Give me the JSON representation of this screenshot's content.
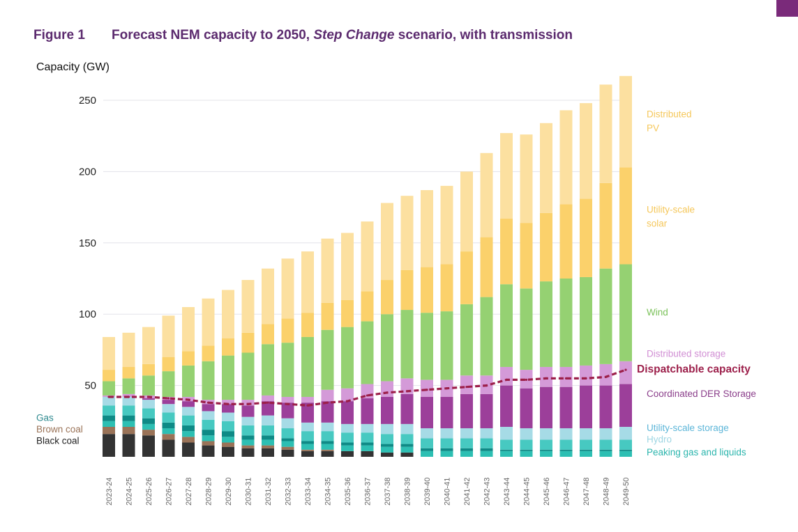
{
  "figure": {
    "label": "Figure 1",
    "title_part1": "Forecast NEM capacity to 2050, ",
    "title_italic": "Step Change",
    "title_part2": " scenario, with transmission"
  },
  "colors": {
    "title": "#5b2a6e",
    "corner_tab": "#7a2a7a",
    "grid": "#e3e3ea",
    "dispatchable_line": "#9c1f4a"
  },
  "chart_data": {
    "type": "stacked-bar",
    "title": "Forecast NEM capacity to 2050, Step Change scenario, with transmission",
    "ylabel": "Capacity (GW)",
    "xlabel": "",
    "ylim": [
      0,
      270
    ],
    "yticks": [
      50,
      100,
      150,
      200,
      250
    ],
    "grid": true,
    "categories": [
      "2023-24",
      "2024-25",
      "2025-26",
      "2026-27",
      "2027-28",
      "2028-29",
      "2029-30",
      "2030-31",
      "2031-32",
      "2032-33",
      "2033-34",
      "2034-35",
      "2035-36",
      "2036-37",
      "2037-38",
      "2038-39",
      "2039-40",
      "2040-41",
      "2041-42",
      "2042-43",
      "2043-44",
      "2044-45",
      "2045-46",
      "2046-47",
      "2047-48",
      "2048-49",
      "2049-50"
    ],
    "series": [
      {
        "name": "Black coal",
        "color": "#333333",
        "values": [
          16,
          16,
          15,
          12,
          10,
          8,
          7,
          6,
          6,
          5,
          4,
          4,
          4,
          4,
          3,
          3,
          0,
          0,
          0,
          0,
          0,
          0,
          0,
          0,
          0,
          0,
          0
        ]
      },
      {
        "name": "Brown coal",
        "color": "#9a7358",
        "values": [
          5,
          5,
          4,
          4,
          4,
          3,
          3,
          2,
          2,
          2,
          1,
          1,
          0,
          0,
          0,
          0,
          0,
          0,
          0,
          0,
          0,
          0,
          0,
          0,
          0,
          0,
          0
        ]
      },
      {
        "name": "Peaking gas and liquids",
        "color": "#2dbfb3",
        "values": [
          4,
          4,
          4,
          4,
          4,
          4,
          4,
          4,
          4,
          4,
          4,
          4,
          4,
          4,
          4,
          4,
          4,
          4,
          4,
          4,
          4,
          4,
          4,
          4,
          4,
          4,
          4
        ]
      },
      {
        "name": "Gas",
        "color": "#0e8a86",
        "values": [
          4,
          4,
          4,
          4,
          4,
          4,
          4,
          3,
          3,
          2,
          2,
          2,
          2,
          2,
          2,
          2,
          2,
          2,
          2,
          2,
          1,
          1,
          1,
          1,
          1,
          1,
          1
        ]
      },
      {
        "name": "Hydro",
        "color": "#47c9c1",
        "values": [
          7,
          7,
          7,
          7,
          7,
          7,
          7,
          7,
          7,
          7,
          7,
          7,
          7,
          7,
          7,
          7,
          7,
          7,
          7,
          7,
          7,
          7,
          7,
          7,
          7,
          7,
          7
        ]
      },
      {
        "name": "Utility-scale storage",
        "color": "#a6dbe6",
        "values": [
          6,
          6,
          6,
          6,
          6,
          6,
          6,
          6,
          7,
          7,
          6,
          6,
          6,
          6,
          7,
          7,
          7,
          7,
          7,
          7,
          9,
          8,
          8,
          8,
          8,
          8,
          9
        ]
      },
      {
        "name": "Coordinated DER Storage",
        "color": "#9c3f9a",
        "values": [
          0,
          0,
          1,
          3,
          4,
          5,
          6,
          8,
          10,
          11,
          14,
          15,
          16,
          18,
          19,
          21,
          22,
          22,
          24,
          24,
          29,
          28,
          29,
          29,
          30,
          30,
          30
        ]
      },
      {
        "name": "Distributed storage",
        "color": "#d49ad8",
        "values": [
          1,
          2,
          2,
          2,
          3,
          3,
          3,
          4,
          4,
          4,
          4,
          8,
          9,
          10,
          11,
          11,
          12,
          12,
          13,
          13,
          13,
          13,
          14,
          14,
          14,
          15,
          16
        ]
      },
      {
        "name": "Wind",
        "color": "#95d172",
        "values": [
          10,
          11,
          14,
          18,
          22,
          27,
          31,
          33,
          36,
          38,
          42,
          42,
          43,
          44,
          47,
          48,
          47,
          48,
          50,
          55,
          58,
          57,
          60,
          62,
          62,
          67,
          68
        ]
      },
      {
        "name": "Utility-scale solar",
        "color": "#fbd16b",
        "values": [
          8,
          8,
          8,
          10,
          10,
          11,
          12,
          14,
          14,
          17,
          17,
          19,
          19,
          21,
          24,
          28,
          32,
          33,
          37,
          42,
          46,
          46,
          48,
          52,
          55,
          60,
          68
        ]
      },
      {
        "name": "Distributed PV",
        "color": "#fce0a0",
        "values": [
          23,
          24,
          26,
          29,
          31,
          33,
          34,
          37,
          39,
          42,
          43,
          45,
          47,
          49,
          54,
          52,
          54,
          55,
          56,
          59,
          60,
          62,
          63,
          66,
          67,
          69,
          64
        ]
      }
    ],
    "line": {
      "name": "Dispatchable capacity",
      "style": "dashed",
      "values": [
        42,
        42,
        42,
        41,
        40,
        38,
        37,
        37,
        38,
        37,
        36,
        38,
        39,
        43,
        45,
        46,
        47,
        48,
        49,
        50,
        54,
        54,
        55,
        55,
        55,
        56,
        61
      ]
    },
    "legend_labels": [
      {
        "name": "Gas",
        "text": "Gas",
        "color": "#2f8a8f",
        "side": "left",
        "at": 27
      },
      {
        "name": "Brown coal",
        "text": "Brown coal",
        "color": "#9a7358",
        "side": "left",
        "at": 19
      },
      {
        "name": "Black coal",
        "text": "Black coal",
        "color": "#222222",
        "side": "left",
        "at": 11
      },
      {
        "name": "Distributed PV",
        "text": [
          "Distributed",
          "PV"
        ],
        "color": "#f5c75a",
        "side": "right",
        "at": 240
      },
      {
        "name": "Utility-scale solar",
        "text": [
          "Utility-scale",
          "solar"
        ],
        "color": "#f5c75a",
        "side": "right",
        "at": 173
      },
      {
        "name": "Wind",
        "text": "Wind",
        "color": "#7bc25a",
        "side": "right",
        "at": 101
      },
      {
        "name": "Distributed storage",
        "text": "Distributed storage",
        "color": "#d18fd4",
        "side": "right",
        "at": 72
      },
      {
        "name": "Dispatchable capacity",
        "text": "Dispatchable capacity",
        "color": "#9c1f4a",
        "side": "right",
        "at": 61,
        "strong": true
      },
      {
        "name": "Coordinated DER Storage",
        "text": "Coordinated DER Storage",
        "color": "#8a3d8a",
        "side": "right",
        "at": 44
      },
      {
        "name": "Utility-scale storage",
        "text": "Utility-scale storage",
        "color": "#5bb5d8",
        "side": "right",
        "at": 20
      },
      {
        "name": "Hydro",
        "text": "Hydro",
        "color": "#9fd6e3",
        "side": "right",
        "at": 12
      },
      {
        "name": "Peaking gas and liquids",
        "text": "Peaking gas and liquids",
        "color": "#2bb5ad",
        "side": "right",
        "at": 3
      }
    ]
  }
}
